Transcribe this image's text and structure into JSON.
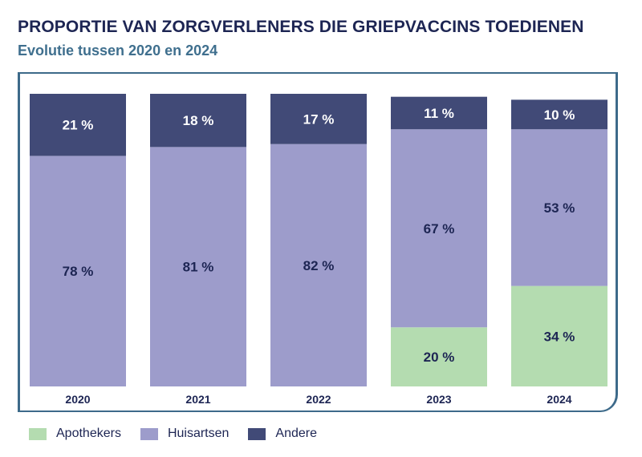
{
  "chart_data": {
    "type": "bar",
    "stacked": true,
    "title": "PROPORTIE VAN ZORGVERLENERS DIE GRIEPVACCINS TOEDIENEN",
    "subtitle": "Evolutie tussen 2020 en 2024",
    "categories": [
      "2020",
      "2021",
      "2022",
      "2023",
      "2024"
    ],
    "series": [
      {
        "name": "Apothekers",
        "color": "#b4dcb0",
        "values": [
          0,
          0,
          0,
          20,
          34
        ],
        "labels": [
          "",
          "",
          "",
          "20 %",
          "34 %"
        ]
      },
      {
        "name": "Huisartsen",
        "color": "#9d9ccb",
        "values": [
          78,
          81,
          82,
          67,
          53
        ],
        "labels": [
          "78 %",
          "81 %",
          "82 %",
          "67 %",
          "53 %"
        ]
      },
      {
        "name": "Andere",
        "color": "#414a77",
        "values": [
          21,
          18,
          17,
          11,
          10
        ],
        "labels": [
          "21 %",
          "18 %",
          "17 %",
          "11 %",
          "10 %"
        ]
      }
    ],
    "label_colors": {
      "Apothekers": "#1d2553",
      "Huisartsen": "#1d2553",
      "Andere": "#ffffff"
    },
    "ylim": [
      0,
      99
    ],
    "legend": "bottom-left"
  }
}
